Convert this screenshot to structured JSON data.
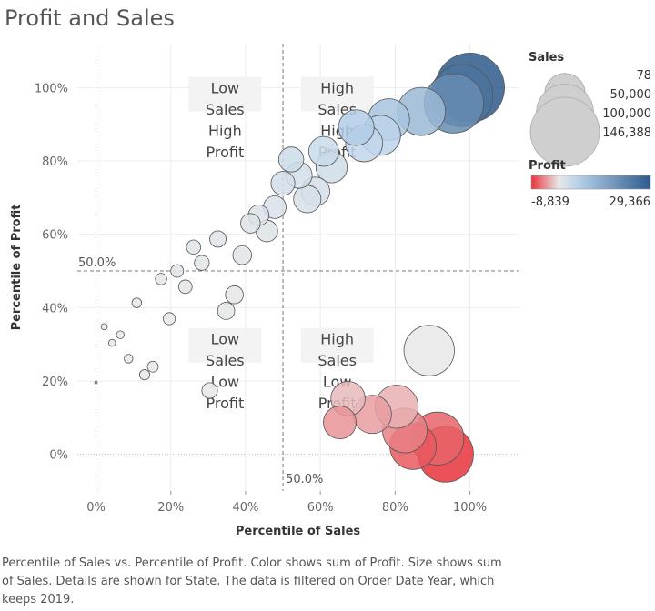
{
  "title": "Profit and Sales",
  "caption": "Percentile of Sales vs. Percentile of Profit.  Color shows sum of Profit.  Size shows sum of Sales.  Details are shown for State. The data is filtered on Order Date Year, which keeps 2019.",
  "colors": {
    "negative": "#e8333b",
    "zero": "#e8e8e8",
    "positive": "#2e5b8c"
  },
  "chart_data": {
    "type": "scatter",
    "xlabel": "Percentile of Sales",
    "ylabel": "Percentile of Profit",
    "xlim": [
      -0.05,
      1.13
    ],
    "ylim": [
      -0.1,
      1.12
    ],
    "x_ticks": [
      "0%",
      "20%",
      "40%",
      "60%",
      "80%",
      "100%"
    ],
    "y_ticks": [
      "0%",
      "20%",
      "40%",
      "60%",
      "80%",
      "100%"
    ],
    "reference_lines": [
      {
        "axis": "y",
        "value": 0.5,
        "label": "50.0%"
      },
      {
        "axis": "x",
        "value": 0.5,
        "label": "50.0%"
      }
    ],
    "quadrant_labels": [
      {
        "text": "Low\nSales\nHigh\nProfit",
        "x": 0.345,
        "y": 0.985
      },
      {
        "text": "High\nSales\nHigh\nProfit",
        "x": 0.645,
        "y": 0.985
      },
      {
        "text": "Low\nSales\nLow\nProfit",
        "x": 0.345,
        "y": 0.3
      },
      {
        "text": "High\nSales\nLow\nProfit",
        "x": 0.645,
        "y": 0.3
      }
    ],
    "points": [
      {
        "x": 0.0,
        "y": 0.196,
        "sales": 78,
        "profit": 20
      },
      {
        "x": 0.022,
        "y": 0.348,
        "sales": 1200,
        "profit": 150
      },
      {
        "x": 0.043,
        "y": 0.304,
        "sales": 1500,
        "profit": 120
      },
      {
        "x": 0.065,
        "y": 0.326,
        "sales": 1900,
        "profit": 140
      },
      {
        "x": 0.087,
        "y": 0.261,
        "sales": 2300,
        "profit": 90
      },
      {
        "x": 0.109,
        "y": 0.413,
        "sales": 2900,
        "profit": 300
      },
      {
        "x": 0.13,
        "y": 0.217,
        "sales": 3200,
        "profit": 60
      },
      {
        "x": 0.152,
        "y": 0.239,
        "sales": 3600,
        "profit": 80
      },
      {
        "x": 0.174,
        "y": 0.478,
        "sales": 4000,
        "profit": 500
      },
      {
        "x": 0.196,
        "y": 0.37,
        "sales": 4500,
        "profit": 200
      },
      {
        "x": 0.217,
        "y": 0.5,
        "sales": 5000,
        "profit": 600
      },
      {
        "x": 0.239,
        "y": 0.457,
        "sales": 5600,
        "profit": 450
      },
      {
        "x": 0.261,
        "y": 0.565,
        "sales": 6200,
        "profit": 800
      },
      {
        "x": 0.283,
        "y": 0.522,
        "sales": 6800,
        "profit": 650
      },
      {
        "x": 0.304,
        "y": 0.174,
        "sales": 7500,
        "profit": 10
      },
      {
        "x": 0.326,
        "y": 0.587,
        "sales": 8200,
        "profit": 900
      },
      {
        "x": 0.348,
        "y": 0.391,
        "sales": 9000,
        "profit": 250
      },
      {
        "x": 0.37,
        "y": 0.435,
        "sales": 9800,
        "profit": 350
      },
      {
        "x": 0.391,
        "y": 0.543,
        "sales": 10800,
        "profit": 700
      },
      {
        "x": 0.413,
        "y": 0.63,
        "sales": 11800,
        "profit": 1100
      },
      {
        "x": 0.435,
        "y": 0.652,
        "sales": 13000,
        "profit": 1300
      },
      {
        "x": 0.457,
        "y": 0.609,
        "sales": 14300,
        "profit": 1000
      },
      {
        "x": 0.478,
        "y": 0.674,
        "sales": 15800,
        "profit": 1500
      },
      {
        "x": 0.5,
        "y": 0.739,
        "sales": 17500,
        "profit": 2000
      },
      {
        "x": 0.522,
        "y": 0.804,
        "sales": 19200,
        "profit": 2600
      },
      {
        "x": 0.543,
        "y": 0.761,
        "sales": 21000,
        "profit": 2200
      },
      {
        "x": 0.565,
        "y": 0.696,
        "sales": 23000,
        "profit": 1700
      },
      {
        "x": 0.587,
        "y": 0.717,
        "sales": 25000,
        "profit": 1800
      },
      {
        "x": 0.609,
        "y": 0.826,
        "sales": 27500,
        "profit": 3000
      },
      {
        "x": 0.63,
        "y": 0.783,
        "sales": 30000,
        "profit": 2400
      },
      {
        "x": 0.652,
        "y": 0.087,
        "sales": 33000,
        "profit": -2500
      },
      {
        "x": 0.674,
        "y": 0.152,
        "sales": 36000,
        "profit": -900
      },
      {
        "x": 0.696,
        "y": 0.891,
        "sales": 39000,
        "profit": 4500
      },
      {
        "x": 0.717,
        "y": 0.848,
        "sales": 42000,
        "profit": 3700
      },
      {
        "x": 0.739,
        "y": 0.109,
        "sales": 45000,
        "profit": -2000
      },
      {
        "x": 0.761,
        "y": 0.87,
        "sales": 49000,
        "profit": 4100
      },
      {
        "x": 0.783,
        "y": 0.913,
        "sales": 53000,
        "profit": 5000
      },
      {
        "x": 0.804,
        "y": 0.13,
        "sales": 57000,
        "profit": -1300
      },
      {
        "x": 0.826,
        "y": 0.065,
        "sales": 61000,
        "profit": -3500
      },
      {
        "x": 0.848,
        "y": 0.022,
        "sales": 66000,
        "profit": -6000
      },
      {
        "x": 0.87,
        "y": 0.935,
        "sales": 71000,
        "profit": 6000
      },
      {
        "x": 0.891,
        "y": 0.283,
        "sales": 78000,
        "profit": 100
      },
      {
        "x": 0.913,
        "y": 0.043,
        "sales": 86000,
        "profit": -5200
      },
      {
        "x": 0.935,
        "y": 0.0,
        "sales": 95000,
        "profit": -8839
      },
      {
        "x": 0.957,
        "y": 0.957,
        "sales": 108000,
        "profit": 14000
      },
      {
        "x": 0.978,
        "y": 0.978,
        "sales": 118000,
        "profit": 21000
      },
      {
        "x": 1.0,
        "y": 1.0,
        "sales": 146388,
        "profit": 29366
      }
    ]
  },
  "legend": {
    "sales_title": "Sales",
    "sales_items": [
      {
        "value": 78,
        "label": "78"
      },
      {
        "value": 50000,
        "label": "50,000"
      },
      {
        "value": 100000,
        "label": "100,000"
      },
      {
        "value": 146388,
        "label": "146,388"
      }
    ],
    "profit_title": "Profit",
    "profit_min": -8839,
    "profit_max": 29366,
    "profit_min_label": "-8,839",
    "profit_max_label": "29,366"
  }
}
